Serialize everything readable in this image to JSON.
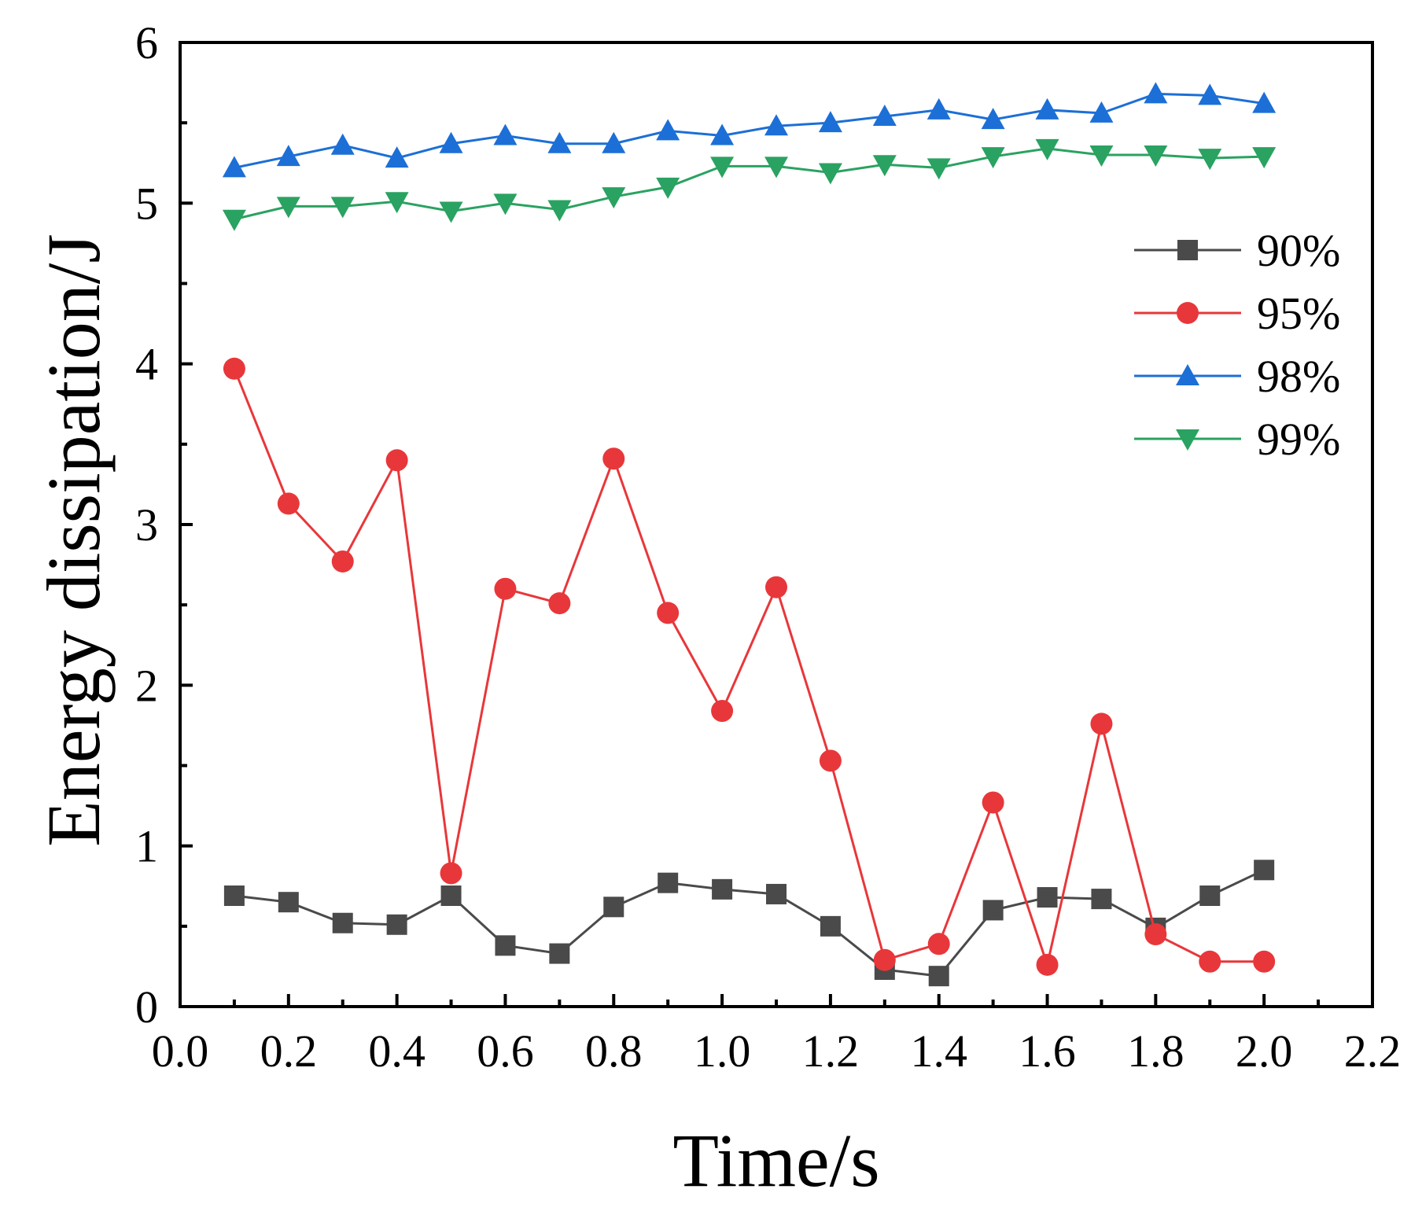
{
  "chart_data": {
    "type": "line",
    "xlabel": "Time/s",
    "ylabel": "Energy dissipation/J",
    "xlim": [
      0.0,
      2.2
    ],
    "ylim": [
      0,
      6
    ],
    "x_ticks": [
      "0.0",
      "0.2",
      "0.4",
      "0.6",
      "0.8",
      "1.0",
      "1.2",
      "1.4",
      "1.6",
      "1.8",
      "2.0",
      "2.2"
    ],
    "y_ticks": [
      "0",
      "1",
      "2",
      "3",
      "4",
      "5",
      "6"
    ],
    "x_tick_values": [
      0.0,
      0.2,
      0.4,
      0.6,
      0.8,
      1.0,
      1.2,
      1.4,
      1.6,
      1.8,
      2.0,
      2.2
    ],
    "y_tick_values": [
      0,
      1,
      2,
      3,
      4,
      5,
      6
    ],
    "grid": false,
    "legend_position": "right",
    "x": [
      0.1,
      0.2,
      0.3,
      0.4,
      0.5,
      0.6,
      0.7,
      0.8,
      0.9,
      1.0,
      1.1,
      1.2,
      1.3,
      1.4,
      1.5,
      1.6,
      1.7,
      1.8,
      1.9,
      2.0
    ],
    "series": [
      {
        "name": "90%",
        "color": "#4a4a4a",
        "marker": "square",
        "values": [
          0.69,
          0.65,
          0.52,
          0.51,
          0.69,
          0.38,
          0.33,
          0.62,
          0.77,
          0.73,
          0.7,
          0.5,
          0.23,
          0.19,
          0.6,
          0.68,
          0.67,
          0.49,
          0.69,
          0.85
        ]
      },
      {
        "name": "95%",
        "color": "#e8373a",
        "marker": "circle",
        "values": [
          3.97,
          3.13,
          2.77,
          3.4,
          0.83,
          2.6,
          2.51,
          3.41,
          2.45,
          1.84,
          2.61,
          1.53,
          0.29,
          0.39,
          1.27,
          0.26,
          1.76,
          0.45,
          0.28,
          0.28
        ]
      },
      {
        "name": "98%",
        "color": "#1c6fd6",
        "marker": "triangle-up",
        "values": [
          5.22,
          5.29,
          5.36,
          5.28,
          5.37,
          5.42,
          5.37,
          5.37,
          5.45,
          5.42,
          5.48,
          5.5,
          5.54,
          5.58,
          5.52,
          5.58,
          5.56,
          5.68,
          5.67,
          5.62
        ]
      },
      {
        "name": "99%",
        "color": "#2aa261",
        "marker": "triangle-down",
        "values": [
          4.9,
          4.98,
          4.98,
          5.01,
          4.95,
          5.0,
          4.96,
          5.04,
          5.1,
          5.23,
          5.23,
          5.19,
          5.24,
          5.22,
          5.29,
          5.34,
          5.3,
          5.3,
          5.28,
          5.29
        ]
      }
    ]
  }
}
